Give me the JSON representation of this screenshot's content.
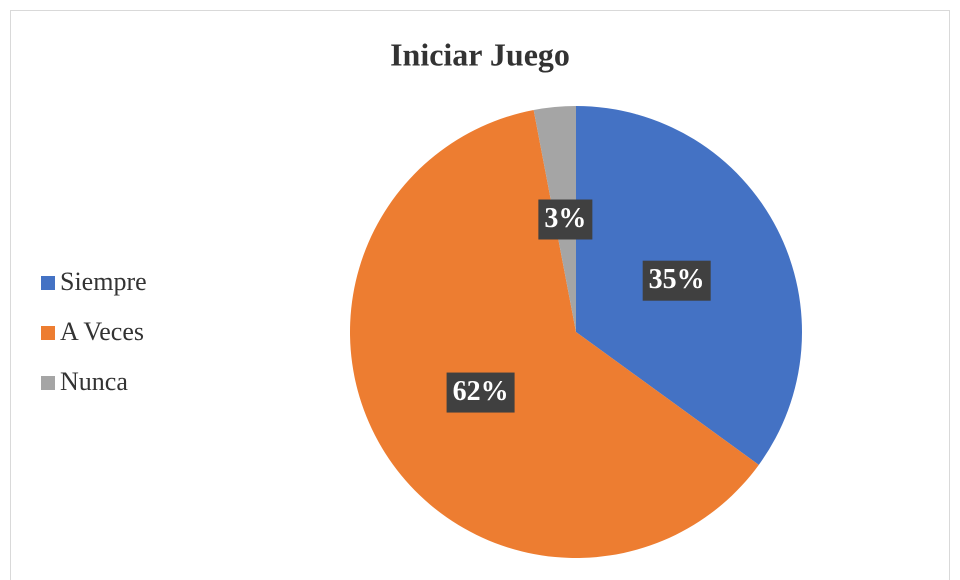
{
  "chart_data": {
    "type": "pie",
    "title": "Iniciar Juego",
    "categories": [
      "Siempre",
      "A Veces",
      "Nunca"
    ],
    "values": [
      35,
      62,
      3
    ],
    "value_labels": [
      "35%",
      "62%",
      "3%"
    ],
    "colors": [
      "#4472c4",
      "#ed7d31",
      "#a5a5a5"
    ],
    "legend": "left"
  }
}
